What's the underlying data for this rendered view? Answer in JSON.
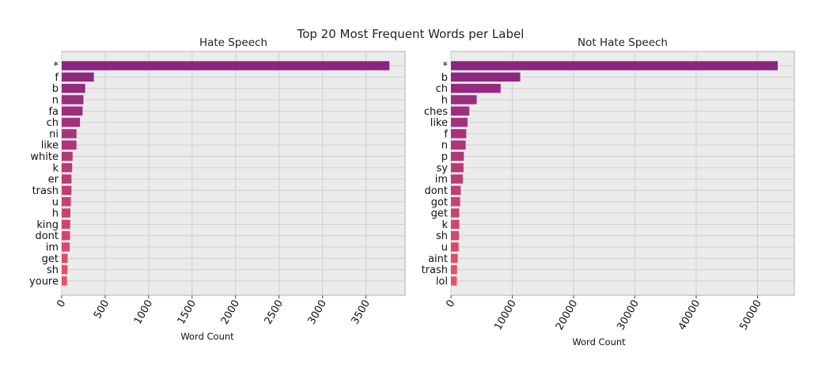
{
  "suptitle": "Top 20 Most Frequent Words per Label",
  "chart_data": [
    {
      "type": "bar",
      "orientation": "horizontal",
      "title": "Hate Speech",
      "xlabel": "Word Count",
      "ylabel": "",
      "xlim": [
        0,
        3950
      ],
      "xticks": [
        0,
        500,
        1000,
        1500,
        2000,
        2500,
        3000,
        3500
      ],
      "grid": true,
      "categories": [
        "*",
        "f",
        "b",
        "n",
        "fa",
        "ch",
        "ni",
        "like",
        "white",
        "k",
        "er",
        "trash",
        "u",
        "h",
        "king",
        "dont",
        "im",
        "get",
        "sh",
        "youre"
      ],
      "values": [
        3770,
        370,
        270,
        250,
        240,
        210,
        170,
        170,
        125,
        120,
        112,
        112,
        105,
        100,
        98,
        96,
        92,
        68,
        67,
        60
      ]
    },
    {
      "type": "bar",
      "orientation": "horizontal",
      "title": "Not Hate Speech",
      "xlabel": "Word Count",
      "ylabel": "",
      "xlim": [
        0,
        56000
      ],
      "xticks": [
        0,
        10000,
        20000,
        30000,
        40000,
        50000
      ],
      "grid": true,
      "categories": [
        "*",
        "b",
        "ch",
        "h",
        "ches",
        "like",
        "f",
        "n",
        "p",
        "sy",
        "im",
        "dont",
        "got",
        "get",
        "k",
        "sh",
        "u",
        "aint",
        "trash",
        "lol"
      ],
      "values": [
        53300,
        11300,
        8100,
        4200,
        3000,
        2700,
        2500,
        2400,
        2100,
        2050,
        1950,
        1600,
        1500,
        1350,
        1350,
        1300,
        1250,
        1100,
        1000,
        950
      ]
    }
  ]
}
